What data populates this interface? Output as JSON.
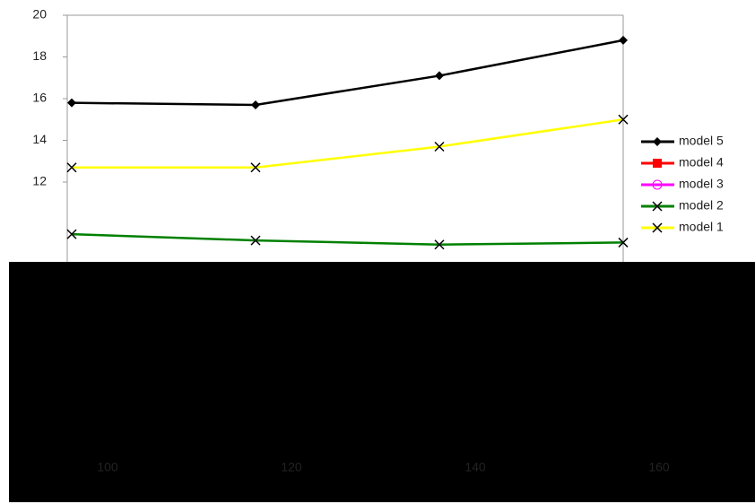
{
  "chart_data": {
    "type": "line",
    "categories": [
      "100",
      "120",
      "140",
      "160"
    ],
    "series": [
      {
        "name": "model 5",
        "color": "#000000",
        "marker": "diamond",
        "values": [
          15.8,
          15.7,
          17.1,
          18.8
        ]
      },
      {
        "name": "model 4",
        "color": "#ff0000",
        "marker": "square",
        "values": [
          null,
          null,
          null,
          null
        ]
      },
      {
        "name": "model 3",
        "color": "#ff00ff",
        "marker": "circle",
        "values": [
          null,
          null,
          null,
          null
        ]
      },
      {
        "name": "model 2",
        "color": "#008000",
        "marker": "x",
        "values": [
          9.5,
          9.2,
          9.0,
          9.1
        ]
      },
      {
        "name": "model 1",
        "color": "#ffff00",
        "marker": "x",
        "values": [
          12.7,
          12.7,
          13.7,
          15.0
        ]
      }
    ],
    "ylim": [
      8,
      20
    ],
    "yticks": [
      12,
      14,
      16,
      18,
      20
    ],
    "grid": false
  }
}
